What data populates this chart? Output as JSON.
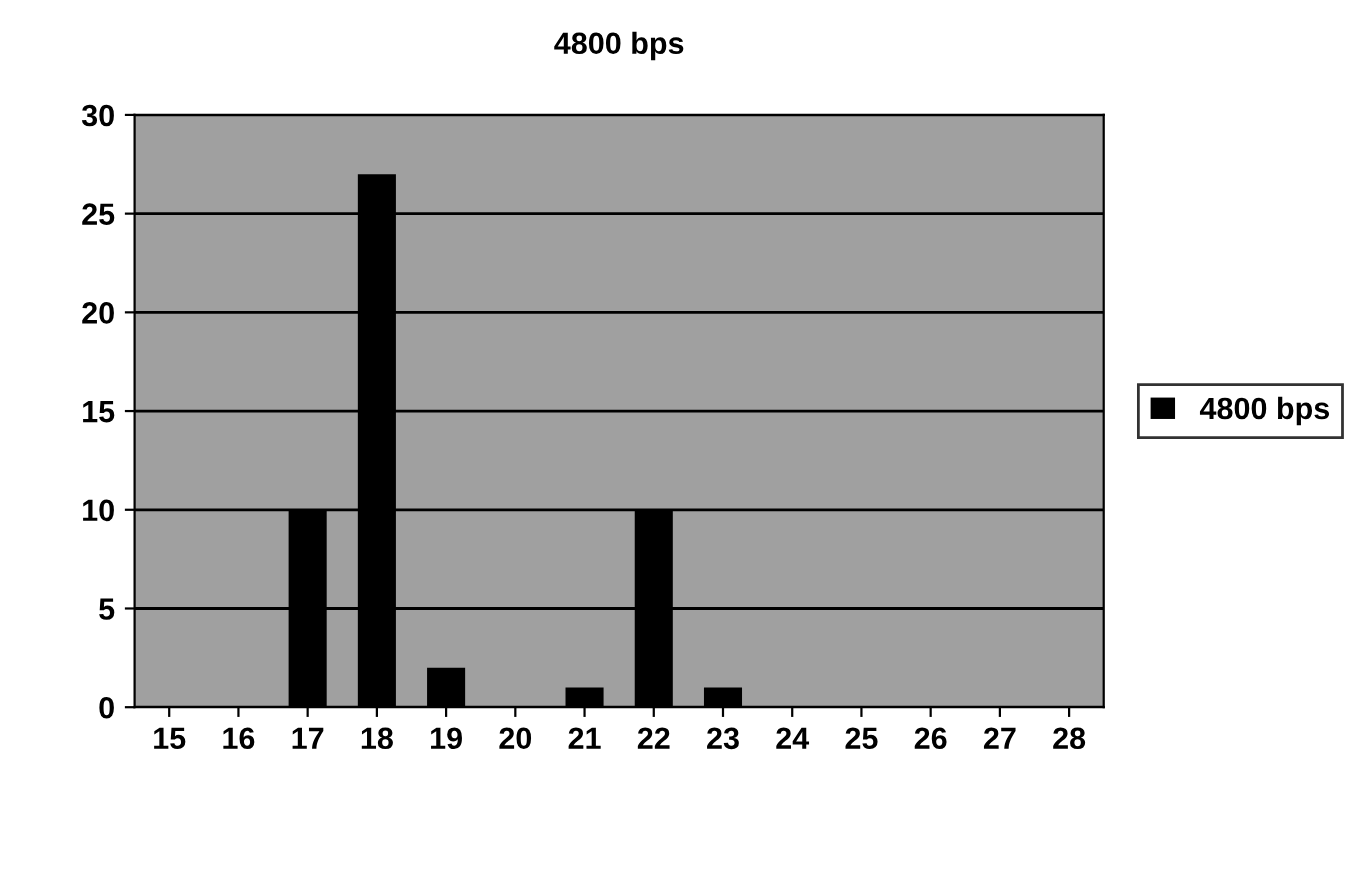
{
  "chart_data": {
    "type": "bar",
    "title": "4800 bps",
    "categories": [
      "15",
      "16",
      "17",
      "18",
      "19",
      "20",
      "21",
      "22",
      "23",
      "24",
      "25",
      "26",
      "27",
      "28"
    ],
    "series": [
      {
        "name": "4800 bps",
        "color": "#000000",
        "values": [
          0,
          0,
          10,
          27,
          2,
          0,
          1,
          10,
          1,
          0,
          0,
          0,
          0,
          0
        ]
      }
    ],
    "ylim": [
      0,
      30
    ],
    "yticks": [
      0,
      5,
      10,
      15,
      20,
      25,
      30
    ],
    "grid": "y",
    "legend": "right"
  }
}
